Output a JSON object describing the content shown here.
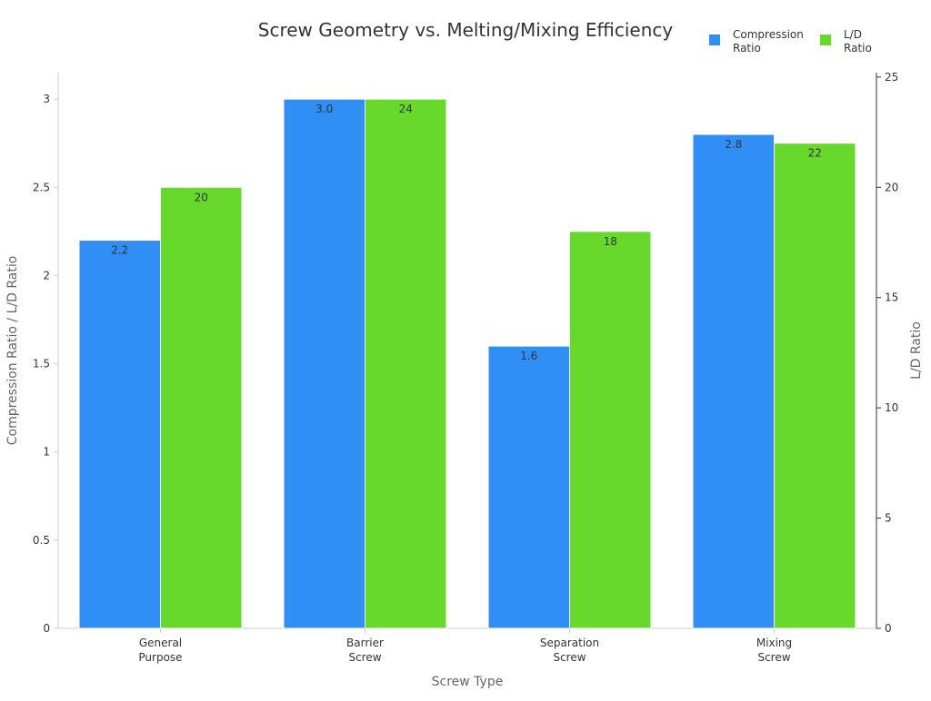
{
  "chart_data": {
    "type": "bar",
    "title": "Screw Geometry vs. Melting/Mixing Efficiency",
    "xlabel": "Screw Type",
    "ylabel": "Compression Ratio / L/D Ratio",
    "y2label": "L/D Ratio",
    "categories": [
      [
        "General",
        "Purpose"
      ],
      [
        "Barrier",
        "Screw"
      ],
      [
        "Separation",
        "Screw"
      ],
      [
        "Mixing",
        "Screw"
      ]
    ],
    "series": [
      {
        "name": [
          "Compression",
          "Ratio"
        ],
        "axis": "left",
        "color": "#2f8ff5",
        "values": [
          2.2,
          3.0,
          1.6,
          2.8
        ],
        "labels": [
          "2.2",
          "3.0",
          "1.6",
          "2.8"
        ]
      },
      {
        "name": [
          "L/D",
          "Ratio"
        ],
        "axis": "right",
        "color": "#66d92a",
        "values": [
          20,
          24,
          18,
          22
        ],
        "labels": [
          "20",
          "24",
          "18",
          "22"
        ]
      }
    ],
    "ylim": [
      0,
      3.15
    ],
    "y2lim": [
      0,
      25.2
    ],
    "yticks": [
      {
        "value": 0,
        "label": "0"
      },
      {
        "value": 0.5,
        "label": "0.5"
      },
      {
        "value": 1,
        "label": "1"
      },
      {
        "value": 1.5,
        "label": "1.5"
      },
      {
        "value": 2,
        "label": "2"
      },
      {
        "value": 2.5,
        "label": "2.5"
      },
      {
        "value": 3,
        "label": "3"
      }
    ],
    "y2ticks": [
      {
        "value": 0,
        "label": "0"
      },
      {
        "value": 5,
        "label": "5"
      },
      {
        "value": 10,
        "label": "10"
      },
      {
        "value": 15,
        "label": "15"
      },
      {
        "value": 20,
        "label": "20"
      },
      {
        "value": 25,
        "label": "25"
      }
    ],
    "grid": false,
    "legend": "top-right"
  }
}
